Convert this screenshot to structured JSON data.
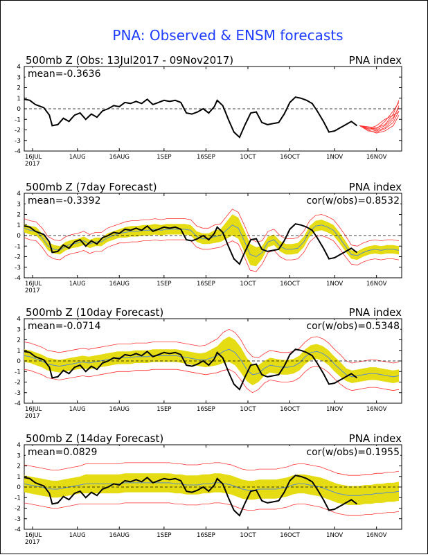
{
  "page": {
    "title": "PNA: Observed & ENSM forecasts",
    "title_color": "#1e3cff"
  },
  "colors": {
    "observed": "#000000",
    "ensemble_spread": "#e6dc14",
    "ensemble_mean": "#5a8cc8",
    "ensemble_members": "#ff3030",
    "zero_line": "#000000"
  },
  "x_axis": {
    "tick_labels": [
      "16JUL",
      "1AUG",
      "16AUG",
      "1SEP",
      "16SEP",
      "1OCT",
      "16OCT",
      "1NOV",
      "16NOV"
    ],
    "year_label": "2017"
  },
  "y_axis": {
    "ylim": [
      -4,
      4
    ],
    "tick_labels": [
      "4",
      "3",
      "2",
      "1",
      "0",
      "-1",
      "-2",
      "-3",
      "-4"
    ]
  },
  "panels": [
    {
      "id": "obs",
      "title": "500mb  Z  (Obs: 13Jul2017 - 09Nov2017)",
      "right_title": "PNA index",
      "mean_label": "mean=-0.3636",
      "cor_label": ""
    },
    {
      "id": "d7",
      "title": "500mb  Z  (7day Forecast)",
      "right_title": "PNA index",
      "mean_label": "mean=-0.3392",
      "cor_label": "cor(w/obs)=0.8532"
    },
    {
      "id": "d10",
      "title": "500mb  Z  (10day Forecast)",
      "right_title": "PNA index",
      "mean_label": "mean=-0.0714",
      "cor_label": "cor(w/obs)=0.5348"
    },
    {
      "id": "d14",
      "title": "500mb  Z  (14day Forecast)",
      "right_title": "PNA index",
      "mean_label": "mean=0.0829",
      "cor_label": "cor(w/obs)=0.1955"
    }
  ],
  "chart_data": {
    "type": "line",
    "ylim": [
      -4,
      4
    ],
    "x_ticks": [
      "16JUL",
      "1AUG",
      "16AUG",
      "1SEP",
      "16SEP",
      "1OCT",
      "16OCT",
      "1NOV",
      "16NOV"
    ],
    "observed": {
      "dates": [
        "2017-07-13",
        "2017-07-15",
        "2017-07-17",
        "2017-07-20",
        "2017-07-22",
        "2017-07-23",
        "2017-07-25",
        "2017-07-27",
        "2017-07-29",
        "2017-07-31",
        "2017-08-02",
        "2017-08-04",
        "2017-08-06",
        "2017-08-08",
        "2017-08-10",
        "2017-08-12",
        "2017-08-14",
        "2017-08-16",
        "2017-08-18",
        "2017-08-20",
        "2017-08-22",
        "2017-08-24",
        "2017-08-26",
        "2017-08-28",
        "2017-08-30",
        "2017-09-01",
        "2017-09-03",
        "2017-09-05",
        "2017-09-07",
        "2017-09-09",
        "2017-09-11",
        "2017-09-13",
        "2017-09-15",
        "2017-09-17",
        "2017-09-19",
        "2017-09-20",
        "2017-09-22",
        "2017-09-24",
        "2017-09-26",
        "2017-09-28",
        "2017-09-30",
        "2017-10-02",
        "2017-10-04",
        "2017-10-06",
        "2017-10-08",
        "2017-10-10",
        "2017-10-12",
        "2017-10-14",
        "2017-10-16",
        "2017-10-18",
        "2017-10-20",
        "2017-10-22",
        "2017-10-24",
        "2017-10-26",
        "2017-10-28",
        "2017-10-30",
        "2017-11-01",
        "2017-11-03",
        "2017-11-05",
        "2017-11-07",
        "2017-11-09"
      ],
      "values": [
        0.9,
        0.8,
        0.4,
        0.1,
        -0.6,
        -1.6,
        -1.5,
        -0.9,
        -1.2,
        -0.6,
        -0.4,
        -1.0,
        -0.5,
        -0.8,
        -0.2,
        0.0,
        0.3,
        0.2,
        0.6,
        0.5,
        0.7,
        0.5,
        0.9,
        0.4,
        0.6,
        0.8,
        0.7,
        0.8,
        0.6,
        -0.4,
        -0.5,
        -0.3,
        0.0,
        -0.4,
        0.2,
        0.8,
        0.3,
        -1.0,
        -2.2,
        -2.7,
        -1.5,
        -0.4,
        -0.3,
        -1.3,
        -1.5,
        -1.4,
        -1.3,
        -0.5,
        0.6,
        1.1,
        1.0,
        0.8,
        0.5,
        -0.3,
        -1.2,
        -2.2,
        -2.1,
        -1.8,
        -1.5,
        -1.2,
        -1.6
      ]
    },
    "forecast_members_end": {
      "dates": [
        "2017-11-10",
        "2017-11-13",
        "2017-11-16",
        "2017-11-19",
        "2017-11-22",
        "2017-11-24"
      ],
      "members": [
        [
          -1.6,
          -1.9,
          -2.1,
          -1.8,
          -1.0,
          0.3
        ],
        [
          -1.6,
          -1.7,
          -1.8,
          -1.5,
          -0.5,
          0.8
        ],
        [
          -1.6,
          -2.0,
          -2.3,
          -2.1,
          -1.6,
          -0.6
        ],
        [
          -1.6,
          -1.8,
          -1.9,
          -1.2,
          -0.2,
          0.6
        ],
        [
          -1.6,
          -2.1,
          -2.2,
          -1.9,
          -1.3,
          -0.2
        ],
        [
          -1.6,
          -1.8,
          -2.0,
          -1.6,
          -0.8,
          0.1
        ],
        [
          -1.6,
          -1.9,
          -1.6,
          -1.0,
          -0.6,
          -0.3
        ]
      ]
    },
    "forecasts": [
      {
        "name": "7day Forecast",
        "mean": [
          0.7,
          0.5,
          0.4,
          -0.2,
          -1.0,
          -1.3,
          -1.4,
          -1.0,
          -0.8,
          -0.7,
          -0.5,
          -0.8,
          -0.6,
          -0.6,
          -0.2,
          0.0,
          0.2,
          0.3,
          0.4,
          0.4,
          0.5,
          0.5,
          0.6,
          0.5,
          0.6,
          0.6,
          0.6,
          0.6,
          0.5,
          -0.1,
          -0.3,
          -0.3,
          -0.1,
          0.0,
          0.5,
          1.0,
          0.7,
          -0.5,
          -1.8,
          -2.0,
          -1.6,
          -0.6,
          -0.4,
          -1.0,
          -1.3,
          -1.3,
          -1.2,
          -0.6,
          0.4,
          0.9,
          1.0,
          0.8,
          0.5,
          -0.2,
          -1.0,
          -1.8,
          -1.9,
          -1.6,
          -1.4,
          -1.3,
          -1.4,
          -1.3,
          -1.3,
          -1.4
        ],
        "spread": [
          0.4,
          0.4,
          0.4,
          0.4,
          0.4,
          0.4,
          0.4,
          0.4,
          0.4,
          0.4,
          0.4,
          0.4,
          0.4,
          0.4,
          0.4,
          0.4,
          0.4,
          0.5,
          0.5,
          0.5,
          0.5,
          0.5,
          0.5,
          0.5,
          0.5,
          0.5,
          0.5,
          0.5,
          0.5,
          0.5,
          0.5,
          0.5,
          0.6,
          0.6,
          0.8,
          1.0,
          1.0,
          1.0,
          1.0,
          0.9,
          0.6,
          0.5,
          0.5,
          0.5,
          0.5,
          0.5,
          0.5,
          0.5,
          0.5,
          0.5,
          0.5,
          0.5,
          0.5,
          0.5,
          0.5,
          0.4,
          0.4,
          0.4,
          0.4,
          0.4,
          0.4,
          0.4,
          0.4,
          0.4
        ],
        "extra": 0.5
      },
      {
        "name": "10day Forecast",
        "mean": [
          0.5,
          0.4,
          0.2,
          0.0,
          -0.3,
          -0.4,
          -0.5,
          -0.4,
          -0.3,
          -0.2,
          -0.1,
          -0.2,
          -0.1,
          0.0,
          0.1,
          0.2,
          0.3,
          0.3,
          0.3,
          0.4,
          0.4,
          0.4,
          0.5,
          0.5,
          0.5,
          0.5,
          0.5,
          0.4,
          0.3,
          0.2,
          0.1,
          0.1,
          0.3,
          0.5,
          0.9,
          1.1,
          0.8,
          0.1,
          -0.8,
          -1.3,
          -1.2,
          -0.7,
          -0.4,
          -0.5,
          -0.6,
          -0.6,
          -0.5,
          -0.2,
          0.4,
          0.8,
          0.9,
          0.7,
          0.3,
          -0.3,
          -0.8,
          -1.3,
          -1.5,
          -1.4,
          -1.3,
          -1.2,
          -1.2,
          -1.3,
          -1.4,
          -1.5,
          -1.4
        ],
        "spread": [
          0.6,
          0.6,
          0.6,
          0.6,
          0.6,
          0.6,
          0.6,
          0.6,
          0.6,
          0.6,
          0.6,
          0.6,
          0.6,
          0.6,
          0.6,
          0.6,
          0.6,
          0.6,
          0.6,
          0.6,
          0.6,
          0.6,
          0.6,
          0.6,
          0.6,
          0.6,
          0.6,
          0.6,
          0.6,
          0.6,
          0.6,
          0.7,
          0.8,
          0.9,
          1.1,
          1.2,
          1.2,
          1.2,
          1.1,
          1.0,
          0.8,
          0.7,
          0.7,
          0.7,
          0.7,
          0.7,
          0.7,
          0.7,
          0.7,
          0.7,
          0.7,
          0.7,
          0.7,
          0.7,
          0.7,
          0.6,
          0.6,
          0.6,
          0.6,
          0.6,
          0.6,
          0.6,
          0.6,
          0.6,
          0.6
        ],
        "extra": 0.7
      },
      {
        "name": "14day Forecast",
        "mean": [
          0.3,
          0.2,
          0.1,
          0.0,
          -0.1,
          -0.2,
          -0.2,
          -0.1,
          0.0,
          0.1,
          0.2,
          0.3,
          0.3,
          0.3,
          0.3,
          0.3,
          0.3,
          0.3,
          0.4,
          0.4,
          0.4,
          0.4,
          0.4,
          0.4,
          0.4,
          0.4,
          0.4,
          0.3,
          0.3,
          0.2,
          0.2,
          0.2,
          0.3,
          0.3,
          0.4,
          0.4,
          0.3,
          0.2,
          0.0,
          -0.2,
          -0.3,
          -0.3,
          -0.2,
          -0.2,
          -0.2,
          -0.2,
          -0.1,
          0.0,
          0.2,
          0.3,
          0.3,
          0.2,
          0.1,
          0.0,
          -0.2,
          -0.4,
          -0.6,
          -0.7,
          -0.8,
          -0.8,
          -0.8,
          -0.7,
          -0.7,
          -0.6,
          -0.6,
          -0.5,
          -0.5,
          -0.4
        ],
        "spread": [
          0.8,
          0.8,
          0.8,
          0.8,
          0.8,
          0.8,
          0.8,
          0.8,
          0.8,
          0.8,
          0.8,
          0.9,
          0.9,
          0.9,
          0.9,
          0.9,
          0.9,
          0.9,
          0.9,
          0.9,
          0.9,
          0.9,
          0.9,
          0.9,
          0.9,
          0.9,
          0.9,
          0.9,
          0.9,
          0.9,
          0.9,
          0.9,
          0.9,
          0.9,
          0.9,
          0.9,
          0.9,
          0.9,
          0.9,
          0.9,
          0.9,
          0.9,
          0.9,
          0.9,
          0.9,
          0.9,
          0.9,
          0.9,
          0.9,
          0.9,
          0.9,
          0.9,
          0.9,
          0.9,
          0.9,
          0.9,
          0.9,
          0.9,
          0.9,
          0.9,
          0.9,
          0.9,
          0.9,
          0.9,
          0.9,
          0.9,
          0.9,
          0.9
        ],
        "extra": 1.0
      }
    ]
  }
}
